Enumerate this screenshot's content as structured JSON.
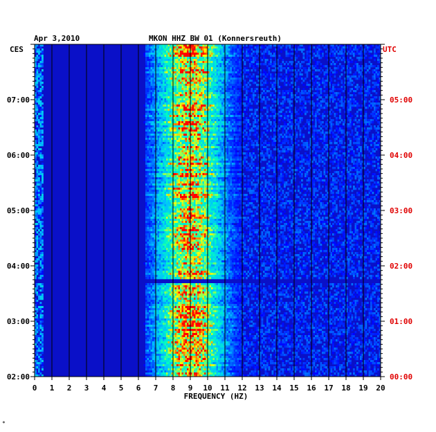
{
  "chart_data": {
    "type": "heatmap",
    "date": "Apr 3,2010",
    "title": "MKON HHZ BW 01 (Konnersreuth)",
    "xlabel": "FREQUENCY (HZ)",
    "left_axis_label": "CES",
    "right_axis_label": "UTC",
    "xlim": [
      0,
      20
    ],
    "x_ticks": [
      "0",
      "1",
      "2",
      "3",
      "4",
      "5",
      "6",
      "7",
      "8",
      "9",
      "10",
      "11",
      "12",
      "13",
      "14",
      "15",
      "16",
      "17",
      "18",
      "19",
      "20"
    ],
    "time_range_ces_hours": [
      2,
      8
    ],
    "left_ticks": [
      {
        "t": 7,
        "label": "07:00"
      },
      {
        "t": 6,
        "label": "06:00"
      },
      {
        "t": 5,
        "label": "05:00"
      },
      {
        "t": 4,
        "label": "04:00"
      },
      {
        "t": 3,
        "label": "03:00"
      },
      {
        "t": 2,
        "label": "02:00"
      }
    ],
    "right_ticks": [
      {
        "t": 7,
        "label": "05:00"
      },
      {
        "t": 6,
        "label": "04:00"
      },
      {
        "t": 5,
        "label": "03:00"
      },
      {
        "t": 4,
        "label": "02:00"
      },
      {
        "t": 3,
        "label": "01:00"
      },
      {
        "t": 2,
        "label": "00:00"
      }
    ],
    "grid": true,
    "energy_band_hz": [
      7,
      12
    ],
    "peak_frequency_hz": 9,
    "gap_time_ces": 3.72,
    "colormap": [
      "#000080",
      "#0000ff",
      "#00c0ff",
      "#00ffc0",
      "#ffff00",
      "#ff0000"
    ]
  },
  "footer_mark": "*"
}
